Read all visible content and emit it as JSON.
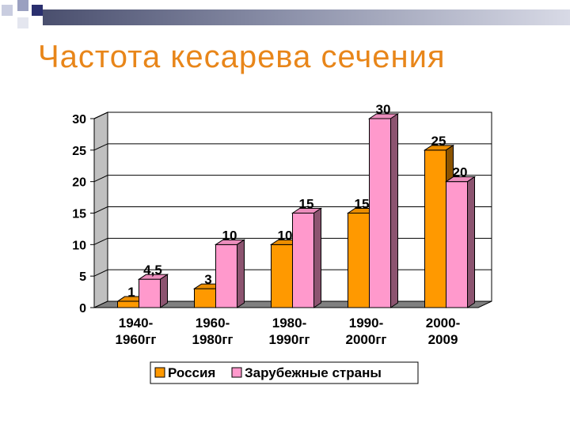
{
  "slide": {
    "title": "Частота кесарева сечения"
  },
  "colors": {
    "title": "#e8861a",
    "series_1": "#ff9900",
    "series_2": "#ff99cc"
  },
  "chart_data": {
    "type": "bar",
    "categories": [
      [
        "1940-",
        "1960гг"
      ],
      [
        "1960-",
        "1980гг"
      ],
      [
        "1980-",
        "1990гг"
      ],
      [
        "1990-",
        "2000гг"
      ],
      [
        "2000-",
        "2009"
      ]
    ],
    "series": [
      {
        "name": "Россия",
        "values": [
          1,
          3,
          10,
          15,
          25
        ],
        "labels": [
          "1",
          "3",
          "10",
          "15",
          "25"
        ]
      },
      {
        "name": "Зарубежные страны",
        "values": [
          4.5,
          10,
          15,
          30,
          20
        ],
        "labels": [
          "4,5",
          "10",
          "15",
          "30",
          "20"
        ]
      }
    ],
    "ylim": [
      0,
      30
    ],
    "yticks": [
      0,
      5,
      10,
      15,
      20,
      25,
      30
    ],
    "grid": true,
    "legend_position": "bottom"
  }
}
